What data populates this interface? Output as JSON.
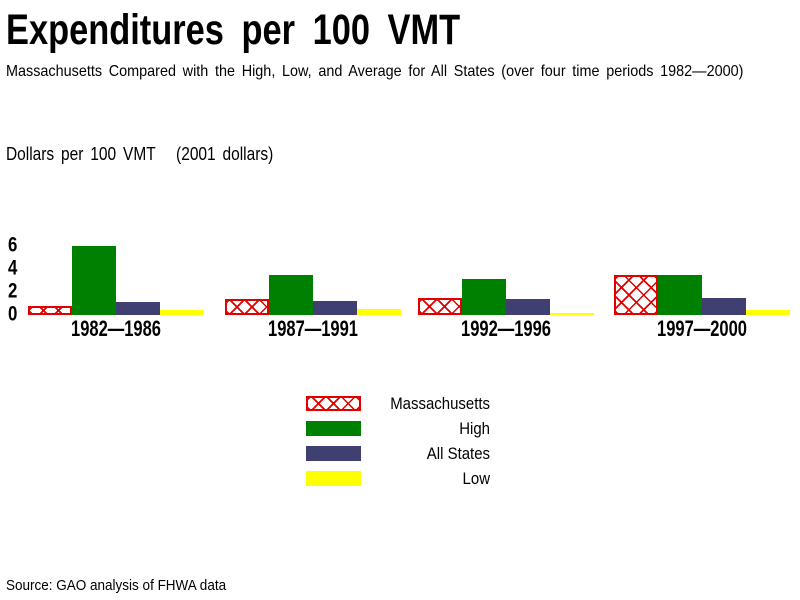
{
  "chart_data": {
    "type": "bar",
    "title": "Expenditures per 100 VMT",
    "subtitle": "Massachusetts Compared with the High, Low, and Average for All States (over four time periods 1982—2000)",
    "ylabel": "Dollars per 100 VMT   (2001 dollars)",
    "source": "Source: GAO analysis of FHWA data",
    "categories": [
      "1982—1986",
      "1987—1991",
      "1992—1996",
      "1997—2000"
    ],
    "y_ticks": [
      6,
      4,
      2,
      0
    ],
    "ylim": [
      0,
      6
    ],
    "grid": false,
    "axis_lines": false,
    "legend_position": "center-below",
    "series": [
      {
        "key": "ma",
        "name": "Massachusetts",
        "pattern": "red-crosshatch",
        "color": "#e00000",
        "values": [
          0.8,
          1.4,
          1.5,
          3.5
        ]
      },
      {
        "key": "high",
        "name": "High",
        "pattern": "solid",
        "color": "#008000",
        "values": [
          6.0,
          3.5,
          3.1,
          3.5
        ]
      },
      {
        "key": "all",
        "name": "All States",
        "pattern": "solid",
        "color": "#3f3f72",
        "values": [
          1.1,
          1.2,
          1.4,
          1.5
        ]
      },
      {
        "key": "low",
        "name": "Low",
        "pattern": "solid",
        "color": "#ffff00",
        "values": [
          0.4,
          0.5,
          0.2,
          0.4
        ]
      }
    ]
  }
}
